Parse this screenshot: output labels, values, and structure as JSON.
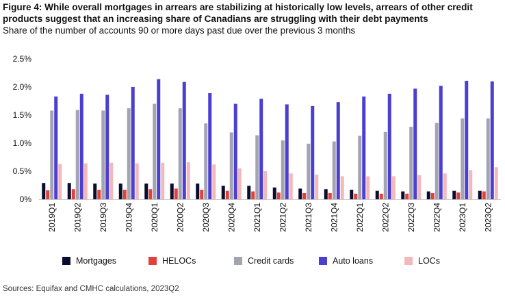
{
  "figure": {
    "title": "Figure 4: While overall mortgages in arrears are stabilizing at historically low levels, arrears of other credit products suggest that an increasing share of Canadians are struggling with their debt payments",
    "subtitle": "Share of the number of accounts 90 or more days past due over the previous 3 months",
    "source": "Sources: Equifax and CMHC calculations, 2023Q2"
  },
  "chart_data": {
    "type": "bar",
    "categories": [
      "2019Q1",
      "2019Q2",
      "2019Q3",
      "2019Q4",
      "2020Q1",
      "2020Q2",
      "2020Q3",
      "2020Q4",
      "2021Q1",
      "2021Q2",
      "2021Q3",
      "2021Q4",
      "2022Q1",
      "2022Q2",
      "2022Q3",
      "2022Q4",
      "2023Q1",
      "2023Q2"
    ],
    "series": [
      {
        "name": "Mortgages",
        "color": "#0b0d2e",
        "values": [
          0.29,
          0.29,
          0.28,
          0.28,
          0.28,
          0.28,
          0.28,
          0.24,
          0.24,
          0.21,
          0.19,
          0.18,
          0.17,
          0.15,
          0.14,
          0.14,
          0.15,
          0.15
        ]
      },
      {
        "name": "HELOCs",
        "color": "#e0423a",
        "values": [
          0.16,
          0.18,
          0.17,
          0.17,
          0.18,
          0.19,
          0.17,
          0.15,
          0.14,
          0.12,
          0.11,
          0.11,
          0.1,
          0.1,
          0.1,
          0.11,
          0.12,
          0.14
        ]
      },
      {
        "name": "Credit cards",
        "color": "#a3a3b2",
        "values": [
          1.58,
          1.59,
          1.58,
          1.62,
          1.7,
          1.62,
          1.35,
          1.19,
          1.14,
          1.05,
          0.99,
          1.03,
          1.13,
          1.2,
          1.29,
          1.36,
          1.44,
          1.44
        ]
      },
      {
        "name": "Auto loans",
        "color": "#4a3fd1",
        "values": [
          1.83,
          1.88,
          1.86,
          2.0,
          2.14,
          2.09,
          1.89,
          1.7,
          1.79,
          1.69,
          1.66,
          1.73,
          1.83,
          1.88,
          1.97,
          2.02,
          2.11,
          2.1
        ]
      },
      {
        "name": "LOCs",
        "color": "#f4b8bb",
        "values": [
          0.63,
          0.64,
          0.65,
          0.64,
          0.65,
          0.66,
          0.62,
          0.55,
          0.5,
          0.46,
          0.44,
          0.41,
          0.41,
          0.41,
          0.43,
          0.46,
          0.52,
          0.57
        ]
      }
    ],
    "yticks": [
      "0%",
      "0.5%",
      "1.0%",
      "1.5%",
      "2.0%",
      "2.5%"
    ],
    "ylim": [
      0,
      2.5
    ],
    "grid": false,
    "legend_position": "bottom"
  }
}
